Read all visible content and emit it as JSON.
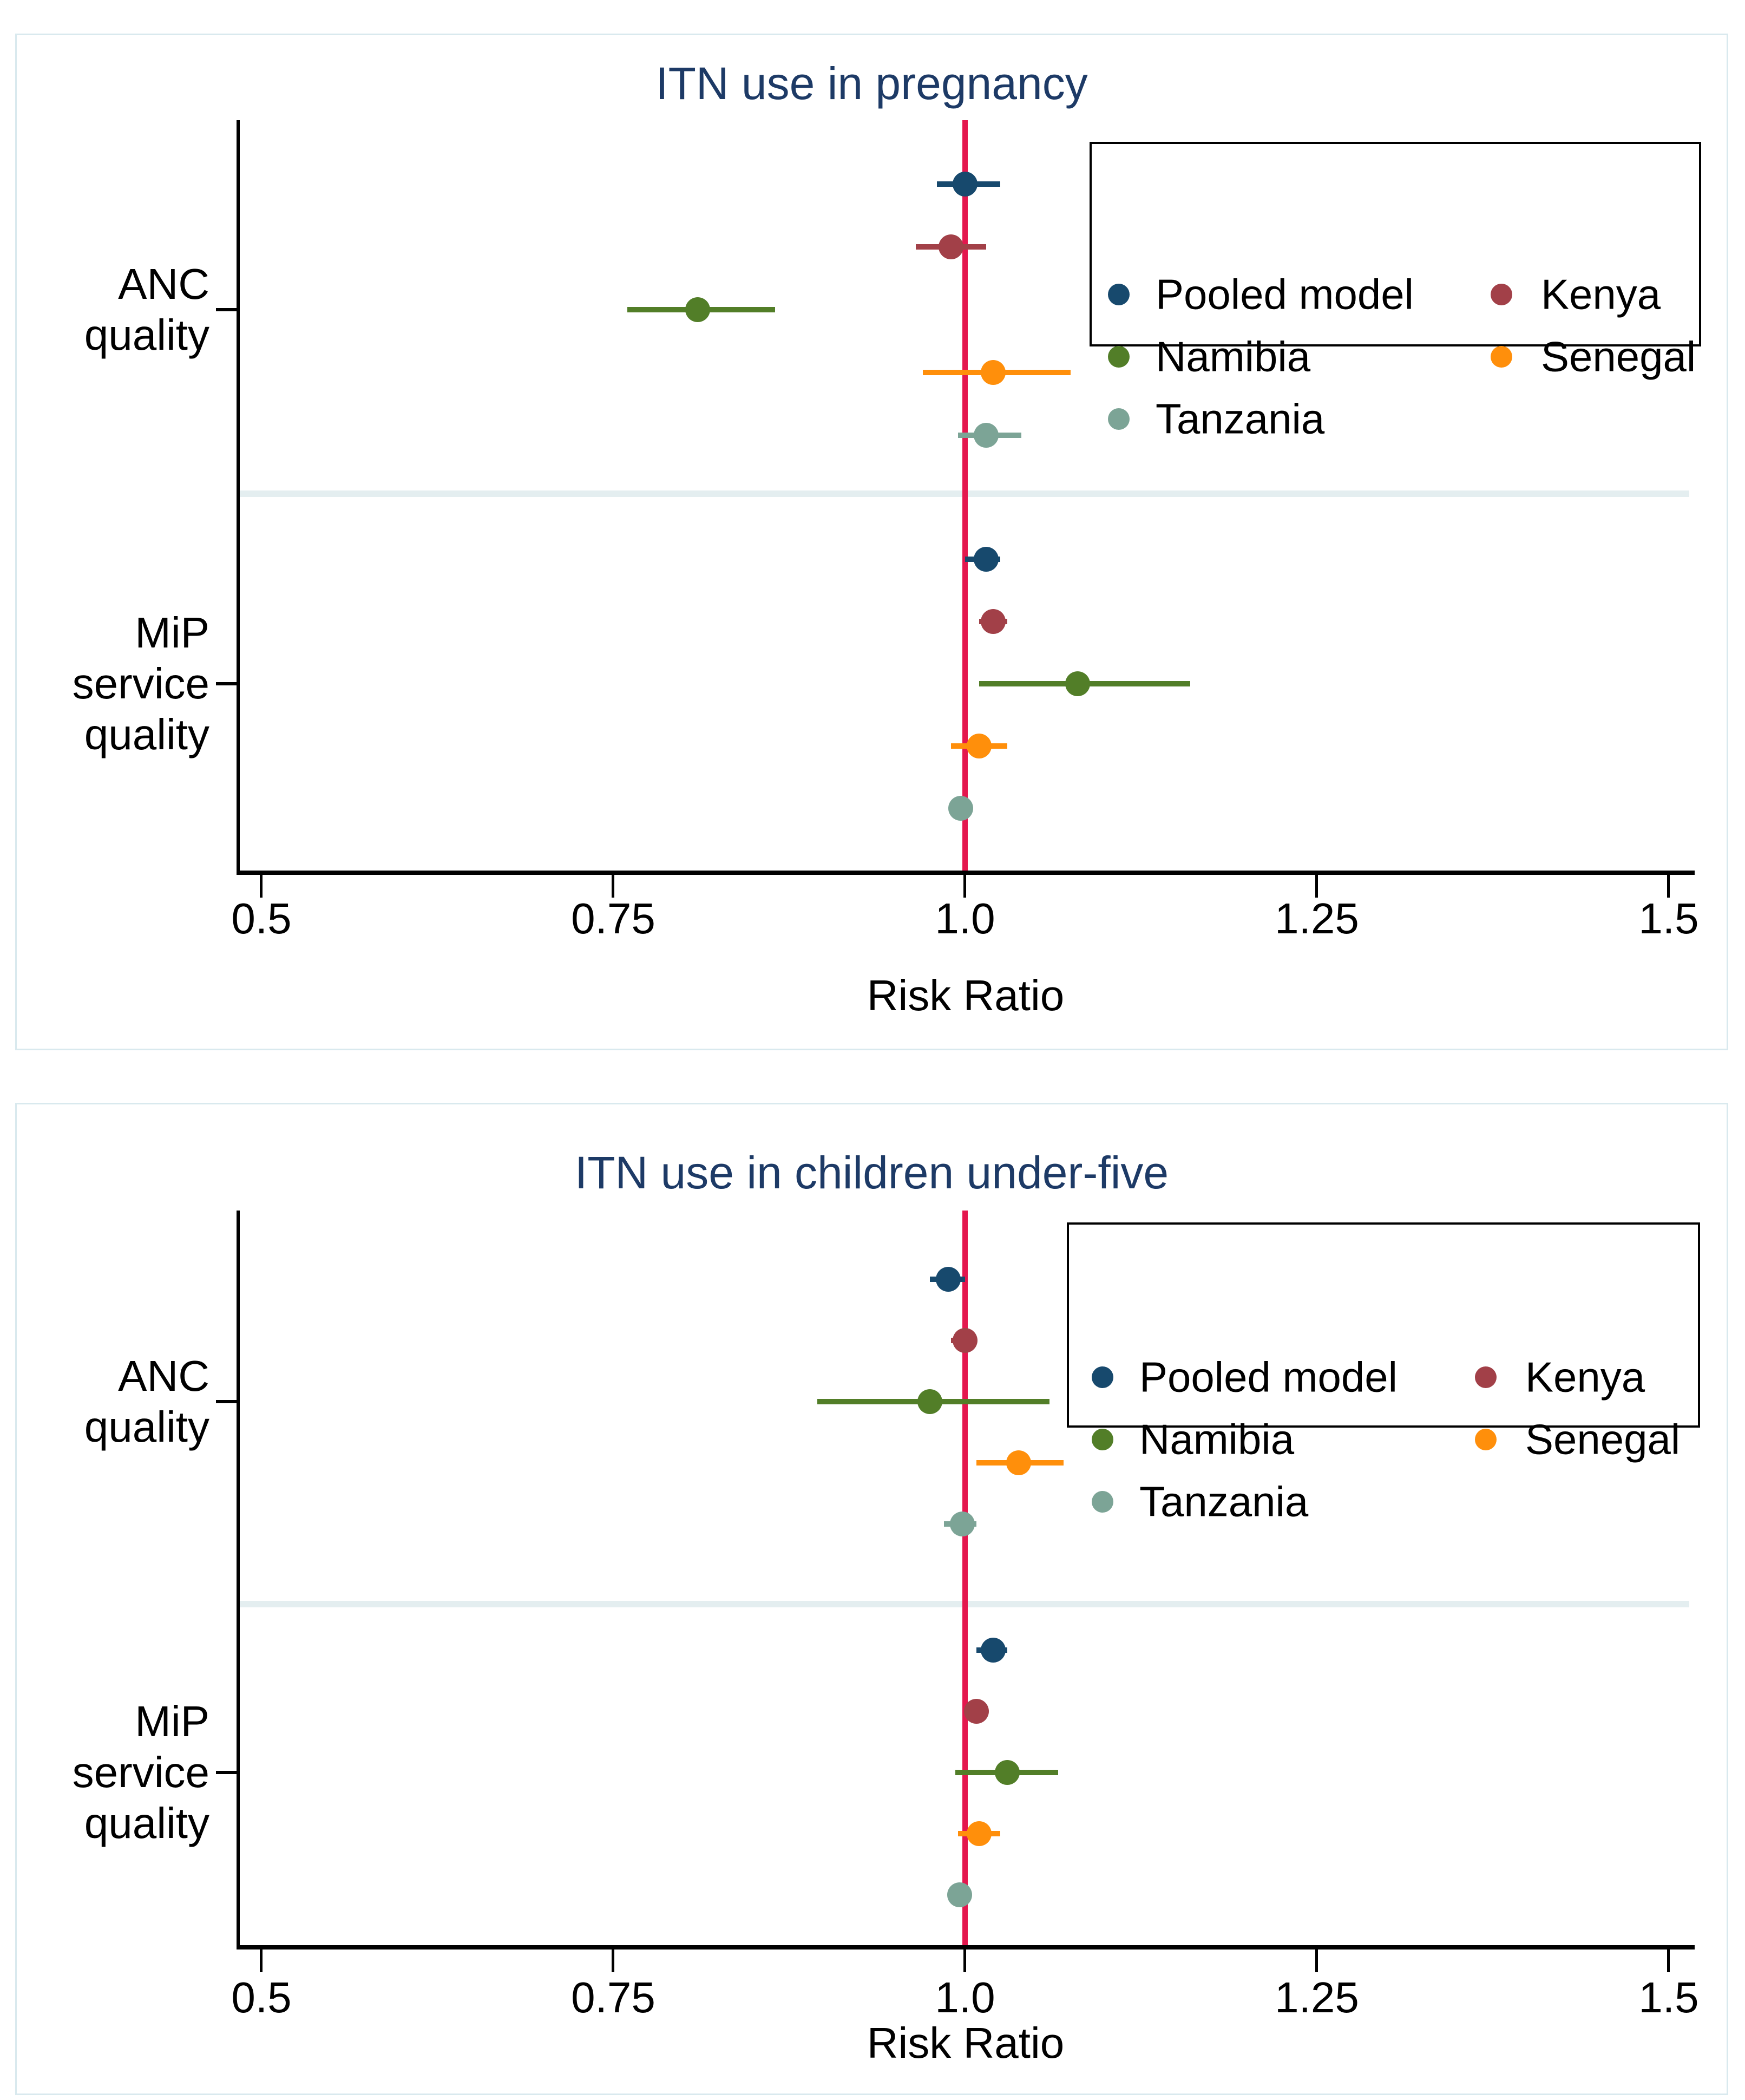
{
  "figure": {
    "x_axis_label": "Risk Ratio",
    "series_palette": {
      "Pooled model": "#17496d",
      "Kenya": "#a24048",
      "Namibia": "#527e28",
      "Senegal": "#ff8f0b",
      "Tanzania": "#7ca496"
    },
    "ref_line_color": "#e4174e",
    "title_color": "#1d3a66",
    "legend_rows": [
      [
        {
          "name": "Pooled model",
          "col": 0
        },
        {
          "name": "Kenya",
          "col": 1
        }
      ],
      [
        {
          "name": "Namibia",
          "col": 0
        },
        {
          "name": "Senegal",
          "col": 1
        }
      ],
      [
        {
          "name": "Tanzania",
          "col": 0
        }
      ]
    ]
  },
  "chart_data": [
    {
      "type": "scatter",
      "subtype": "forest-plot",
      "title": "ITN use in pregnancy",
      "xlabel": "Risk Ratio",
      "x_ticks": [
        0.5,
        0.75,
        1.0,
        1.25,
        1.5
      ],
      "x_tick_labels": [
        "0.5",
        "0.75",
        "1.0",
        "1.25",
        "1.5"
      ],
      "xlim": [
        0.483,
        1.52
      ],
      "ref_line": 1.0,
      "legend_position": "top-right",
      "grid": false,
      "groups": [
        {
          "label": "ANC quality",
          "label_lines": [
            "ANC",
            "quality"
          ],
          "estimates": [
            {
              "series": "Pooled model",
              "rr": 1.0,
              "ci_low": 0.98,
              "ci_high": 1.025
            },
            {
              "series": "Kenya",
              "rr": 0.99,
              "ci_low": 0.965,
              "ci_high": 1.015
            },
            {
              "series": "Namibia",
              "rr": 0.81,
              "ci_low": 0.76,
              "ci_high": 0.865
            },
            {
              "series": "Senegal",
              "rr": 1.02,
              "ci_low": 0.97,
              "ci_high": 1.075
            },
            {
              "series": "Tanzania",
              "rr": 1.015,
              "ci_low": 0.995,
              "ci_high": 1.04
            }
          ]
        },
        {
          "label": "MiP service quality",
          "label_lines": [
            "MiP",
            "service",
            "quality"
          ],
          "estimates": [
            {
              "series": "Pooled model",
              "rr": 1.015,
              "ci_low": 1.0,
              "ci_high": 1.025
            },
            {
              "series": "Kenya",
              "rr": 1.02,
              "ci_low": 1.01,
              "ci_high": 1.03
            },
            {
              "series": "Namibia",
              "rr": 1.08,
              "ci_low": 1.01,
              "ci_high": 1.16
            },
            {
              "series": "Senegal",
              "rr": 1.01,
              "ci_low": 0.99,
              "ci_high": 1.03
            },
            {
              "series": "Tanzania",
              "rr": 0.997,
              "ci_low": 0.99,
              "ci_high": 1.003
            }
          ]
        }
      ]
    },
    {
      "type": "scatter",
      "subtype": "forest-plot",
      "title": "ITN use in children under-five",
      "xlabel": "Risk Ratio",
      "x_ticks": [
        0.5,
        0.75,
        1.0,
        1.25,
        1.5
      ],
      "x_tick_labels": [
        "0.5",
        "0.75",
        "1.0",
        "1.25",
        "1.5"
      ],
      "xlim": [
        0.483,
        1.52
      ],
      "ref_line": 1.0,
      "legend_position": "top-right",
      "grid": false,
      "groups": [
        {
          "label": "ANC quality",
          "label_lines": [
            "ANC",
            "quality"
          ],
          "estimates": [
            {
              "series": "Pooled model",
              "rr": 0.988,
              "ci_low": 0.975,
              "ci_high": 1.0
            },
            {
              "series": "Kenya",
              "rr": 1.0,
              "ci_low": 0.99,
              "ci_high": 1.008
            },
            {
              "series": "Namibia",
              "rr": 0.975,
              "ci_low": 0.895,
              "ci_high": 1.06
            },
            {
              "series": "Senegal",
              "rr": 1.038,
              "ci_low": 1.008,
              "ci_high": 1.07
            },
            {
              "series": "Tanzania",
              "rr": 0.998,
              "ci_low": 0.985,
              "ci_high": 1.008
            }
          ]
        },
        {
          "label": "MiP service quality",
          "label_lines": [
            "MiP",
            "service",
            "quality"
          ],
          "estimates": [
            {
              "series": "Pooled model",
              "rr": 1.02,
              "ci_low": 1.008,
              "ci_high": 1.03
            },
            {
              "series": "Kenya",
              "rr": 1.008,
              "ci_low": 1.0,
              "ci_high": 1.016
            },
            {
              "series": "Namibia",
              "rr": 1.03,
              "ci_low": 0.993,
              "ci_high": 1.066
            },
            {
              "series": "Senegal",
              "rr": 1.01,
              "ci_low": 0.995,
              "ci_high": 1.025
            },
            {
              "series": "Tanzania",
              "rr": 0.996,
              "ci_low": 0.99,
              "ci_high": 1.002
            }
          ]
        }
      ]
    }
  ]
}
